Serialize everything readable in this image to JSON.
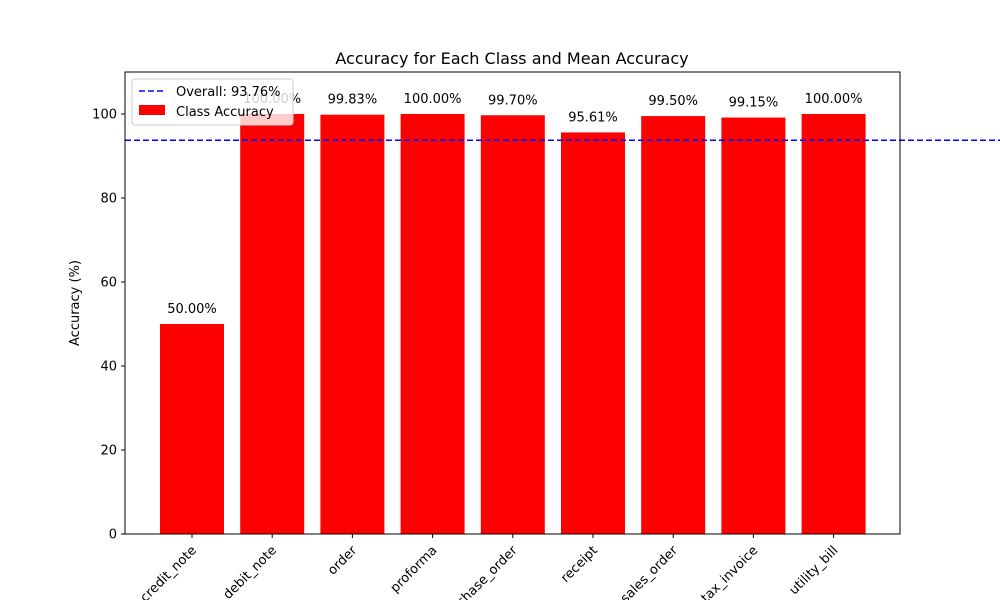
{
  "chart_data": {
    "type": "bar",
    "title": "Accuracy for Each Class and Mean Accuracy",
    "xlabel": "",
    "ylabel": "Accuracy (%)",
    "categories": [
      "credit_note",
      "debit_note",
      "order",
      "proforma",
      "purchase_order",
      "receipt",
      "sales_order",
      "tax_invoice",
      "utility_bill"
    ],
    "values": [
      50.0,
      100.0,
      99.83,
      100.0,
      99.7,
      95.61,
      99.5,
      99.15,
      100.0
    ],
    "data_labels": [
      "50.00%",
      "100.00%",
      "99.83%",
      "100.00%",
      "99.70%",
      "95.61%",
      "99.50%",
      "99.15%",
      "100.00%"
    ],
    "ylim": [
      0,
      110
    ],
    "yticks": [
      0,
      20,
      40,
      60,
      80,
      100
    ],
    "reference_line": {
      "value": 93.76,
      "label": "Overall: 93.76%",
      "style": "dashed",
      "color": "#0000ff"
    },
    "series_label": "Class Accuracy",
    "bar_color": "#ff0000",
    "legend_position": "upper-left",
    "grid": false
  }
}
